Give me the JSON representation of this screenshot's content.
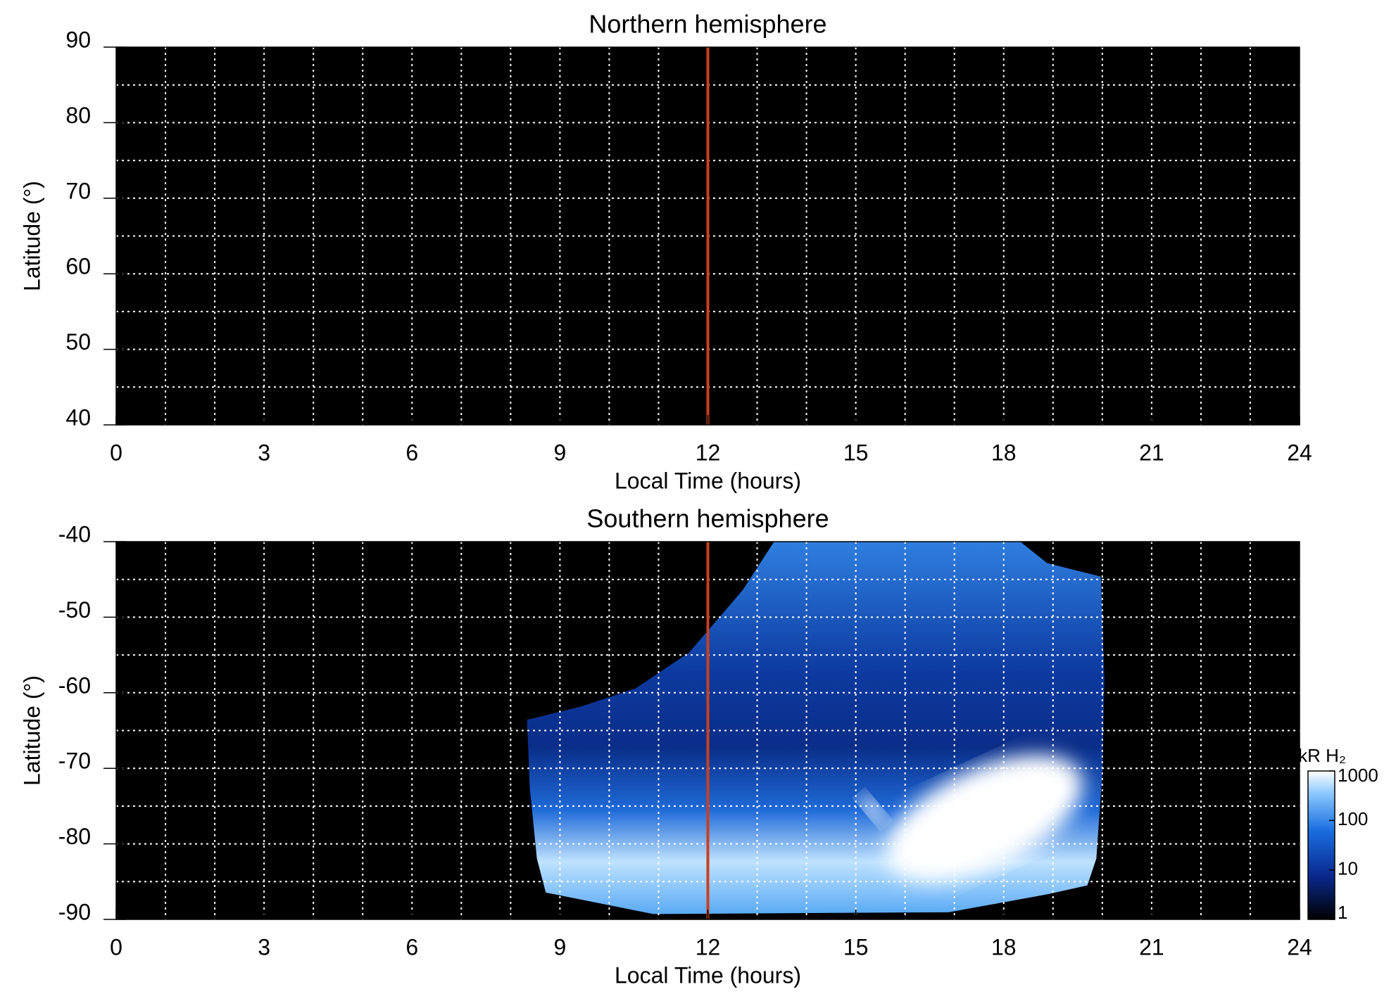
{
  "chart_data": [
    {
      "type": "heatmap",
      "title": "Northern hemisphere",
      "xlabel": "Local Time (hours)",
      "ylabel": "Latitude (°)",
      "xlim": [
        0,
        24
      ],
      "xticks": [
        0,
        3,
        6,
        9,
        12,
        15,
        18,
        21,
        24
      ],
      "ylim": [
        40,
        90
      ],
      "yticks": [
        40,
        50,
        60,
        70,
        80,
        90
      ],
      "grid": true,
      "grid_x_step": 1,
      "grid_y_step": 5,
      "vline": 12,
      "vline_color": "#c8401e"
    },
    {
      "type": "heatmap",
      "title": "Southern hemisphere",
      "xlabel": "Local Time (hours)",
      "ylabel": "Latitude (°)",
      "xlim": [
        0,
        24
      ],
      "xticks": [
        0,
        3,
        6,
        9,
        12,
        15,
        18,
        21,
        24
      ],
      "ylim": [
        -90,
        -40
      ],
      "yticks": [
        -90,
        -80,
        -70,
        -60,
        -50,
        -40
      ],
      "grid": true,
      "grid_x_step": 1,
      "grid_y_step": 5,
      "vline": 12,
      "vline_color": "#c8401e",
      "colorbar": {
        "label": "kR H₂",
        "log": true,
        "lim": [
          1,
          1000
        ],
        "ticks": [
          1,
          10,
          100,
          1000
        ]
      }
    }
  ]
}
